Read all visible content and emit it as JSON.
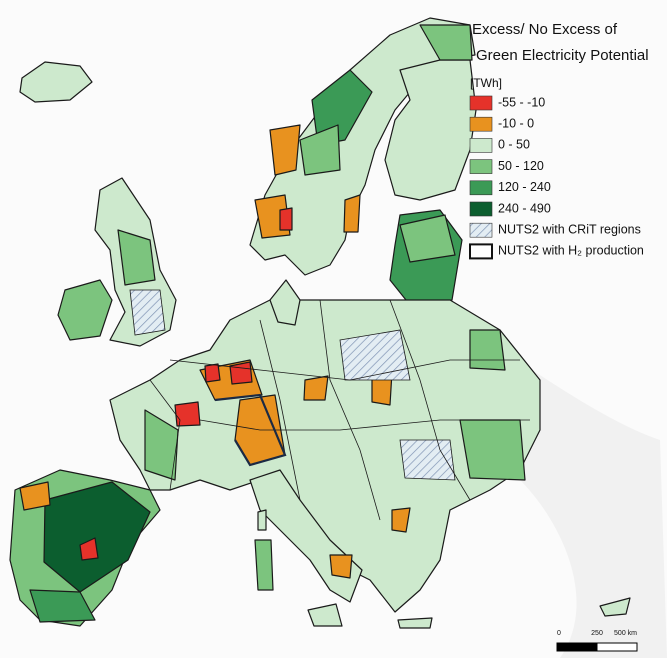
{
  "legend": {
    "title": [
      "Excess/ No Excess of",
      "Green Electricity Potential"
    ],
    "unit": "[TWh]",
    "items": [
      {
        "label": "-55 - -10",
        "color": "#e5322a"
      },
      {
        "label": "-10 - 0",
        "color": "#e8921f"
      },
      {
        "label": "0 - 50",
        "color": "#cde9cd"
      },
      {
        "label": "50 - 120",
        "color": "#7cc47e"
      },
      {
        "label": "120 - 240",
        "color": "#3b9a56"
      },
      {
        "label": "240 - 490",
        "color": "#0c5e2f"
      },
      {
        "label": "NUTS2 with CRiT regions",
        "style": "hatched"
      },
      {
        "label": "NUTS2 with H₂ production",
        "style": "outlined"
      }
    ]
  },
  "scale_bar": {
    "labels": [
      "0",
      "250",
      "500 km"
    ]
  }
}
